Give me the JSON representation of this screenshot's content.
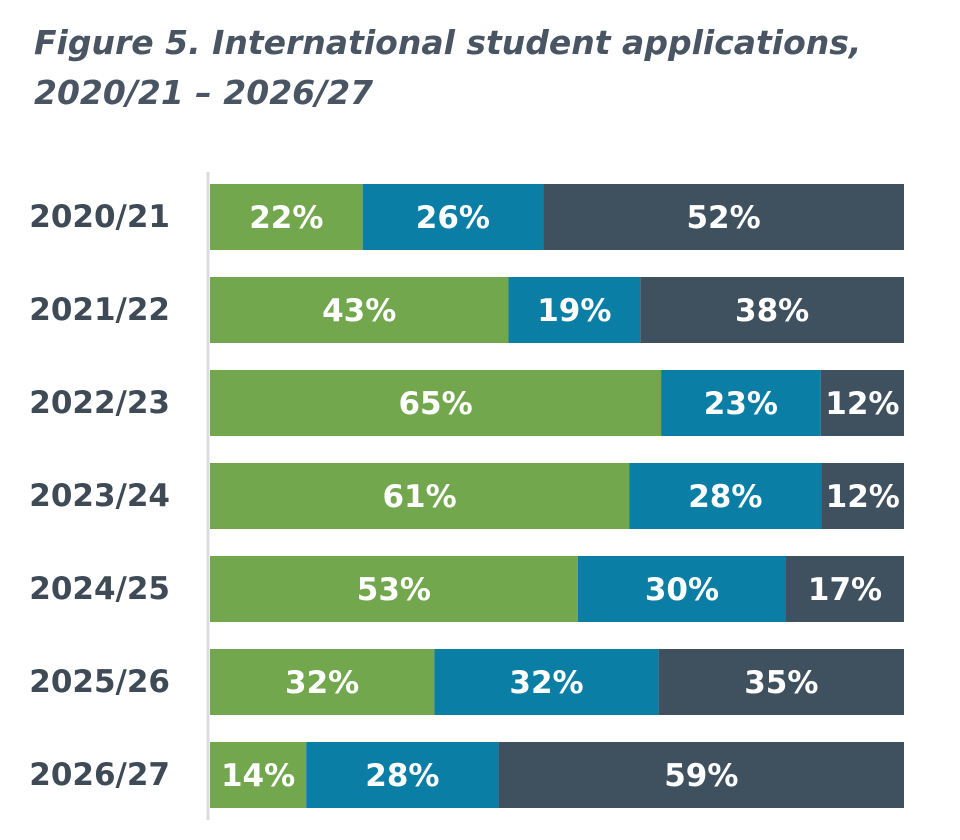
{
  "chart_data": {
    "type": "bar",
    "orientation": "horizontal",
    "stacked": true,
    "title_line1": "Figure 5. International student applications,",
    "title_line2": "2020/21 – 2026/27",
    "categories": [
      "2020/21",
      "2021/22",
      "2022/23",
      "2023/24",
      "2024/25",
      "2025/26",
      "2026/27"
    ],
    "series": [
      {
        "color": "#72a74e",
        "values": [
          22,
          43,
          65,
          61,
          53,
          32,
          14
        ],
        "labels": [
          "22%",
          "43%",
          "65%",
          "61%",
          "53%",
          "32%",
          "14%"
        ]
      },
      {
        "color": "#0a7ea4",
        "values": [
          26,
          19,
          23,
          28,
          30,
          32,
          28
        ],
        "labels": [
          "26%",
          "19%",
          "23%",
          "28%",
          "30%",
          "32%",
          "28%"
        ]
      },
      {
        "color": "#3f505e",
        "values": [
          52,
          38,
          12,
          12,
          17,
          35,
          59
        ],
        "labels": [
          "52%",
          "38%",
          "12%",
          "12%",
          "17%",
          "35%",
          "59%"
        ]
      }
    ],
    "xlabel": "",
    "ylabel": "",
    "legend": "none",
    "grid": false
  }
}
